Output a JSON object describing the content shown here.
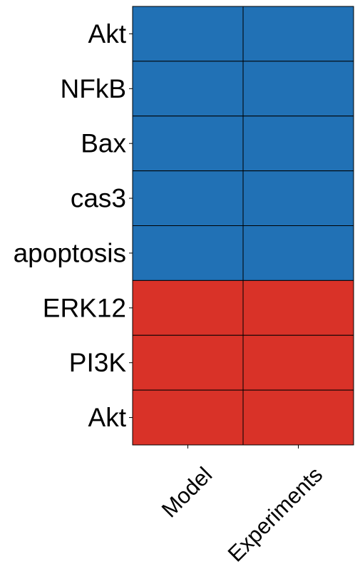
{
  "chart_data": {
    "type": "heatmap",
    "title": "",
    "xlabel": "",
    "ylabel": "",
    "columns": [
      "Model",
      "Experiments"
    ],
    "rows": [
      "Akt",
      "NFkB",
      "Bax",
      "cas3",
      "apoptosis",
      "ERK12",
      "PI3K",
      "Akt"
    ],
    "values": [
      [
        -1,
        -1
      ],
      [
        -1,
        -1
      ],
      [
        -1,
        -1
      ],
      [
        -1,
        -1
      ],
      [
        -1,
        -1
      ],
      [
        1,
        1
      ],
      [
        1,
        1
      ],
      [
        1,
        1
      ]
    ],
    "colors": {
      "-1": "#2171b5",
      "1": "#d93228"
    },
    "grid_line_color": "#000000",
    "legend": "none",
    "colorbar": "none"
  }
}
